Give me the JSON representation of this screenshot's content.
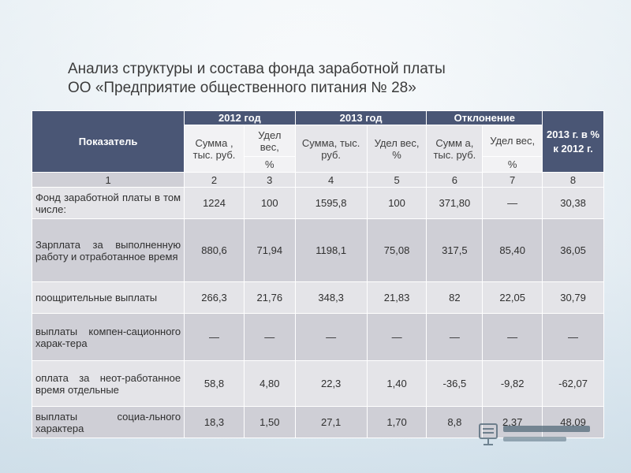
{
  "title": {
    "line1": "Анализ структуры и состава фонда заработной платы",
    "line2": "ОО «Предприятие общественного питания № 28»"
  },
  "table": {
    "header": {
      "indicator": "Показатель",
      "year2012": "2012 год",
      "year2013": "2013 год",
      "deviation": "Отклонение",
      "ratio": "2013 г. в % к 2012 г.",
      "sum_2012": "Сумма , тыс. руб.",
      "share_2012_top": "Удел вес,",
      "share_2012_bottom": "%",
      "sum_2013": "Сумма, тыс. руб.",
      "share_2013": "Удел вес, %",
      "sum_dev": "Сумм а, тыс. руб.",
      "share_dev_top": "Удел вес,",
      "share_dev_bottom": "%"
    },
    "column_numbers": [
      "1",
      "2",
      "3",
      "4",
      "5",
      "6",
      "7",
      "8"
    ],
    "rows": [
      {
        "label": "Фонд заработной платы в том числе:",
        "values": [
          "1224",
          "100",
          "1595,8",
          "100",
          "371,80",
          "—",
          "30,38"
        ]
      },
      {
        "label": "Зарплата за выполненную работу и отработанное время",
        "values": [
          "880,6",
          "71,94",
          "1198,1",
          "75,08",
          "317,5",
          "85,40",
          "36,05"
        ]
      },
      {
        "label": "поощрительные выплаты",
        "values": [
          "266,3",
          "21,76",
          "348,3",
          "21,83",
          "82",
          "22,05",
          "30,79"
        ]
      },
      {
        "label": "выплаты компен-сационного харак-тера",
        "values": [
          "—",
          "—",
          "—",
          "—",
          "—",
          "—",
          "—"
        ]
      },
      {
        "label": "оплата за неот-работанное время отдельные",
        "values": [
          "58,8",
          "4,80",
          "22,3",
          "1,40",
          "-36,5",
          "-9,82",
          "-62,07"
        ]
      },
      {
        "label": "выплаты социа-льного характера",
        "values": [
          "18,3",
          "1,50",
          "27,1",
          "1,70",
          "8,8",
          "2,37",
          "48,09"
        ]
      }
    ]
  },
  "watermark_icon": "presentation-logo-icon",
  "colors": {
    "header_bg": "#4a5675",
    "row_dark": "#cfcfd6",
    "row_light": "#e4e4e8"
  }
}
